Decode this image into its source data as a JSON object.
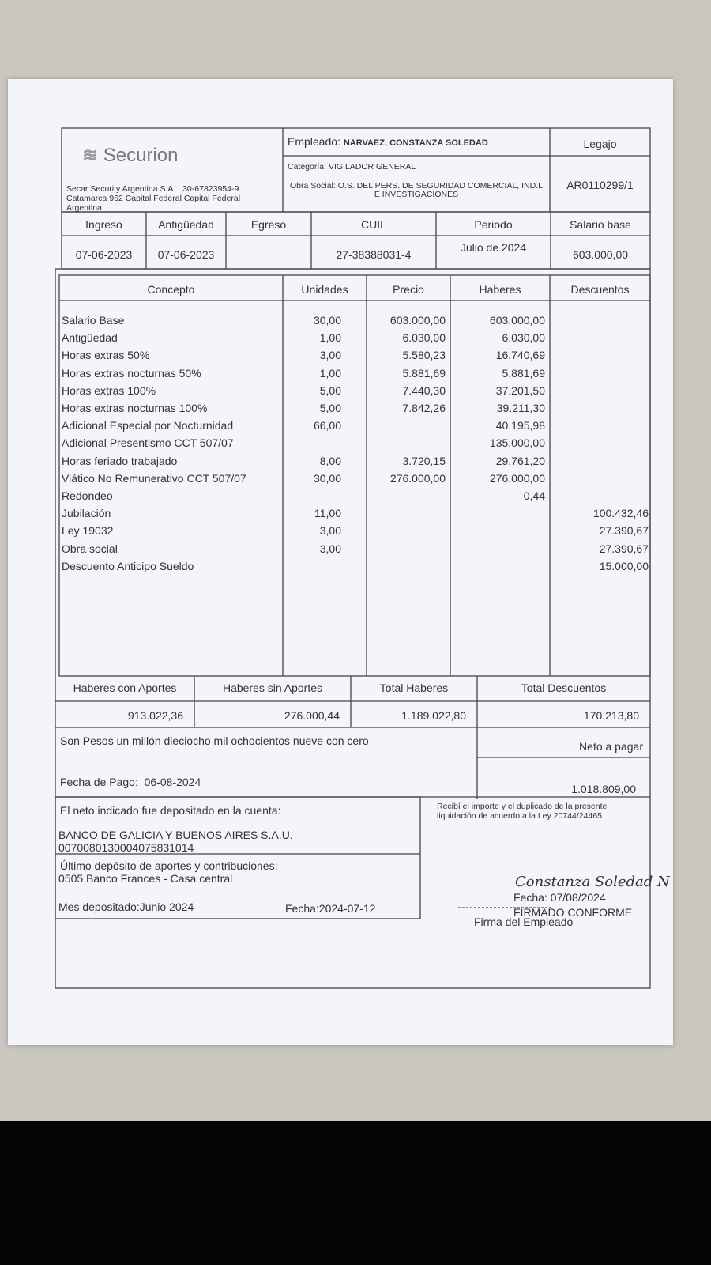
{
  "header": {
    "logo": "Securion",
    "company": "Secar Security Argentina S.A.",
    "cuit": "30-67823954-9",
    "address": "Catamarca 962 Capital Federal Capital Federal",
    "country": "Argentina",
    "empleado_label": "Empleado:",
    "empleado": "NARVAEZ, CONSTANZA SOLEDAD",
    "categoria": "Categoría: VIGILADOR GENERAL",
    "obra_social": "Obra Social: O.S. DEL PERS. DE SEGURIDAD COMERCIAL, IND.L E INVESTIGACIONES",
    "legajo_label": "Legajo",
    "legajo": "AR0110299/1"
  },
  "info": {
    "headers": [
      "Ingreso",
      "Antigüedad",
      "Egreso",
      "CUIL",
      "Periodo",
      "Salario base"
    ],
    "values": [
      "07-06-2023",
      "07-06-2023",
      null,
      "27-38388031-4",
      "Julio de 2024",
      "603.000,00"
    ]
  },
  "items": {
    "headers": [
      "Concepto",
      "Unidades",
      "Precio",
      "Haberes",
      "Descuentos"
    ],
    "rows": [
      [
        "Salario Base",
        "30,00",
        "603.000,00",
        "603.000,00",
        null
      ],
      [
        "Antigüedad",
        "1,00",
        "6.030,00",
        "6.030,00",
        null
      ],
      [
        "Horas extras 50%",
        "3,00",
        "5.580,23",
        "16.740,69",
        null
      ],
      [
        "Horas extras nocturnas 50%",
        "1,00",
        "5.881,69",
        "5.881,69",
        null
      ],
      [
        "Horas extras 100%",
        "5,00",
        "7.440,30",
        "37.201,50",
        null
      ],
      [
        "Horas extras nocturnas 100%",
        "5,00",
        "7.842,26",
        "39.211,30",
        null
      ],
      [
        "Adicional Especial por Nocturnidad",
        "66,00",
        null,
        "40.195,98",
        null
      ],
      [
        "Adicional Presentismo CCT 507/07",
        null,
        null,
        "135.000,00",
        null
      ],
      [
        "Horas feriado trabajado",
        "8,00",
        "3.720,15",
        "29.761,20",
        null
      ],
      [
        "Viático No Remunerativo CCT 507/07",
        "30,00",
        "276.000,00",
        "276.000,00",
        null
      ],
      [
        "Redondeo",
        null,
        null,
        "0,44",
        null
      ],
      [
        "Jubilación",
        "11,00",
        null,
        null,
        "100.432,46"
      ],
      [
        "Ley 19032",
        "3,00",
        null,
        null,
        "27.390,67"
      ],
      [
        "Obra social",
        "3,00",
        null,
        null,
        "27.390,67"
      ],
      [
        "Descuento Anticipo Sueldo",
        null,
        null,
        null,
        "15.000,00"
      ]
    ]
  },
  "totals": {
    "headers": [
      "Haberes con Aportes",
      "Haberes sin Aportes",
      "Total Haberes",
      "Total Descuentos"
    ],
    "values": [
      "913.022,36",
      "276.000,44",
      "1.189.022,80",
      "170.213,80"
    ]
  },
  "words": "Son Pesos un millón dieciocho mil ochocientos nueve con cero",
  "neto_label": "Neto a pagar",
  "neto": "1.018.809,00",
  "fecha_pago_label": "Fecha de Pago:",
  "fecha_pago": "06-08-2024",
  "deposit": {
    "label": "El neto indicado fue depositado en la cuenta:",
    "bank": "BANCO DE GALICIA Y BUENOS AIRES S.A.U.",
    "account": "0070080130004075831014",
    "aportes_label": "Último depósito de aportes y contribuciones:",
    "aportes_bank": "0505 Banco Frances - Casa central",
    "mes": "Mes depositado:Junio 2024",
    "fecha": "Fecha:2024-07-12"
  },
  "signature": {
    "receipt_line1": "Recibí el importe y el duplicado de la presente",
    "receipt_line2": "liquidación de acuerdo a la Ley 20744/24465",
    "name": "Constanza Soledad N",
    "fecha": "Fecha: 07/08/2024",
    "firmado": "FIRMADO CONFORME",
    "firma_label": "Firma del Empleado"
  }
}
